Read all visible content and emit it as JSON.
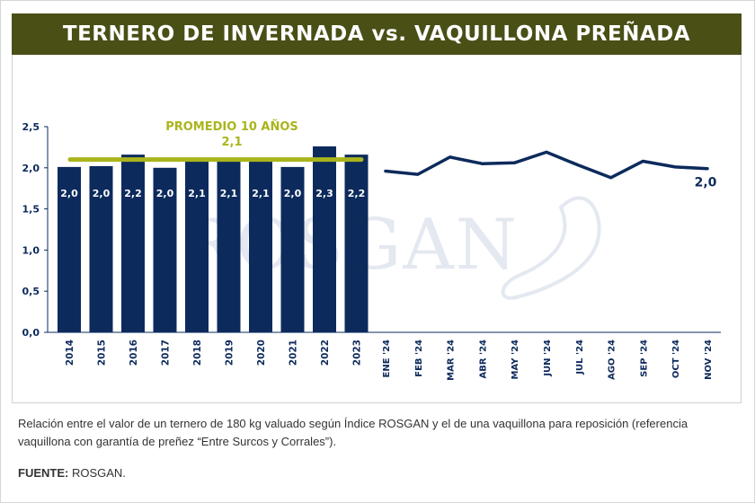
{
  "title": "TERNERO DE INVERNADA vs. VAQUILLONA PREÑADA",
  "watermark": "ROSGAN",
  "description": "Relación entre el valor de un ternero de 180 kg valuado según Índice ROSGAN y el de una vaquillona para reposición (referencia vaquillona con garantía de preñez “Entre Surcos y Corrales”).",
  "source_label": "FUENTE:",
  "source_value": " ROSGAN.",
  "colors": {
    "title_bg": "#4a4f16",
    "bar": "#0d2a5c",
    "line": "#0d2a5c",
    "average": "#aab51c",
    "axis_text": "#0d2a5c"
  },
  "chart_data": {
    "type": "bar+line",
    "ylim": [
      0,
      2.5
    ],
    "yticks": [
      "0,0",
      "0,5",
      "1,0",
      "1,5",
      "2,0",
      "2,5"
    ],
    "annual": {
      "type": "bar",
      "categories": [
        "2014",
        "2015",
        "2016",
        "2017",
        "2018",
        "2019",
        "2020",
        "2021",
        "2022",
        "2023"
      ],
      "values": [
        2.01,
        2.02,
        2.16,
        2.0,
        2.1,
        2.1,
        2.1,
        2.01,
        2.26,
        2.16
      ],
      "labels": [
        "2,0",
        "2,0",
        "2,2",
        "2,0",
        "2,1",
        "2,1",
        "2,1",
        "2,0",
        "2,3",
        "2,2"
      ]
    },
    "average": {
      "label": "PROMEDIO 10 AÑOS",
      "value_label": "2,1",
      "value": 2.1
    },
    "monthly": {
      "type": "line",
      "categories": [
        "ENE '24",
        "FEB '24",
        "MAR '24",
        "ABR '24",
        "MAY '24",
        "JUN '24",
        "JUL '24",
        "AGO '24",
        "SEP '24",
        "OCT '24",
        "NOV '24"
      ],
      "values": [
        1.96,
        1.92,
        2.13,
        2.05,
        2.06,
        2.19,
        2.03,
        1.88,
        2.08,
        2.01,
        1.99
      ],
      "end_label": "2,0"
    }
  }
}
